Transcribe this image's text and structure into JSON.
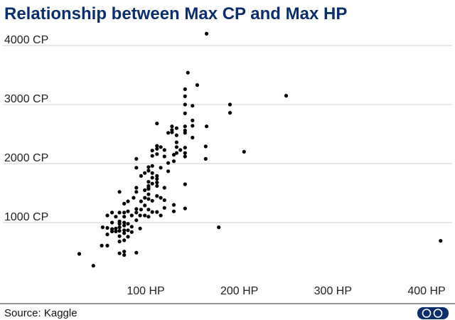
{
  "chart_data": {
    "type": "scatter",
    "title": "Relationship between Max CP and Max HP",
    "xlabel": "",
    "ylabel": "",
    "xlim": [
      20,
      420
    ],
    "ylim": [
      0,
      4400
    ],
    "x_ticks": [
      100,
      200,
      300,
      400
    ],
    "x_tick_labels": [
      "100 HP",
      "200 HP",
      "300 HP",
      "400 HP"
    ],
    "y_ticks": [
      1000,
      2000,
      3000,
      4000
    ],
    "y_tick_labels": [
      "1000 CP",
      "2000 CP",
      "3000 CP",
      "4000 CP"
    ],
    "grid": "horizontal",
    "legend": "none",
    "marker_color": "#000000",
    "points": [
      [
        29,
        470
      ],
      [
        44,
        270
      ],
      [
        53,
        610
      ],
      [
        54,
        920
      ],
      [
        59,
        1120
      ],
      [
        59,
        910
      ],
      [
        59,
        800
      ],
      [
        59,
        610
      ],
      [
        64,
        1170
      ],
      [
        64,
        1000
      ],
      [
        64,
        890
      ],
      [
        64,
        850
      ],
      [
        68,
        1100
      ],
      [
        68,
        900
      ],
      [
        68,
        850
      ],
      [
        72,
        1520
      ],
      [
        72,
        1170
      ],
      [
        72,
        1020
      ],
      [
        72,
        980
      ],
      [
        72,
        920
      ],
      [
        72,
        860
      ],
      [
        72,
        770
      ],
      [
        72,
        680
      ],
      [
        72,
        480
      ],
      [
        77,
        1320
      ],
      [
        77,
        1170
      ],
      [
        77,
        1100
      ],
      [
        77,
        1000
      ],
      [
        77,
        950
      ],
      [
        77,
        870
      ],
      [
        77,
        820
      ],
      [
        77,
        700
      ],
      [
        77,
        510
      ],
      [
        77,
        450
      ],
      [
        81,
        1360
      ],
      [
        81,
        1190
      ],
      [
        81,
        980
      ],
      [
        81,
        870
      ],
      [
        81,
        760
      ],
      [
        85,
        1120
      ],
      [
        85,
        930
      ],
      [
        85,
        840
      ],
      [
        87,
        1420
      ],
      [
        90,
        1590
      ],
      [
        90,
        1520
      ],
      [
        90,
        1230
      ],
      [
        90,
        1170
      ],
      [
        90,
        1040
      ],
      [
        90,
        2080
      ],
      [
        90,
        1930
      ],
      [
        90,
        490
      ],
      [
        94,
        1120
      ],
      [
        94,
        900
      ],
      [
        95,
        1790
      ],
      [
        95,
        1360
      ],
      [
        95,
        1220
      ],
      [
        99,
        1550
      ],
      [
        99,
        1420
      ],
      [
        99,
        1290
      ],
      [
        99,
        1120
      ],
      [
        99,
        1840
      ],
      [
        103,
        1620
      ],
      [
        103,
        1480
      ],
      [
        103,
        1400
      ],
      [
        103,
        1220
      ],
      [
        103,
        1100
      ],
      [
        103,
        1940
      ],
      [
        103,
        1880
      ],
      [
        103,
        1690
      ],
      [
        103,
        1590
      ],
      [
        103,
        1570
      ],
      [
        107,
        2220
      ],
      [
        107,
        2130
      ],
      [
        107,
        1960
      ],
      [
        107,
        1840
      ],
      [
        107,
        1760
      ],
      [
        107,
        1660
      ],
      [
        107,
        1370
      ],
      [
        107,
        1180
      ],
      [
        112,
        2300
      ],
      [
        112,
        2250
      ],
      [
        112,
        2160
      ],
      [
        112,
        1790
      ],
      [
        112,
        1740
      ],
      [
        112,
        1680
      ],
      [
        112,
        1620
      ],
      [
        112,
        1450
      ],
      [
        112,
        1180
      ],
      [
        112,
        2680
      ],
      [
        116,
        2280
      ],
      [
        116,
        1930
      ],
      [
        116,
        1420
      ],
      [
        116,
        1120
      ],
      [
        120,
        2230
      ],
      [
        120,
        2120
      ],
      [
        120,
        1590
      ],
      [
        120,
        1380
      ],
      [
        120,
        1250
      ],
      [
        124,
        2520
      ],
      [
        124,
        2010
      ],
      [
        124,
        1870
      ],
      [
        128,
        2630
      ],
      [
        128,
        2570
      ],
      [
        128,
        2530
      ],
      [
        130,
        2150
      ],
      [
        130,
        2040
      ],
      [
        130,
        1300
      ],
      [
        130,
        1190
      ],
      [
        133,
        2600
      ],
      [
        133,
        2480
      ],
      [
        133,
        2360
      ],
      [
        133,
        2280
      ],
      [
        133,
        2180
      ],
      [
        137,
        2230
      ],
      [
        142,
        3260
      ],
      [
        142,
        3140
      ],
      [
        142,
        3000
      ],
      [
        142,
        2850
      ],
      [
        142,
        2630
      ],
      [
        142,
        2560
      ],
      [
        142,
        2520
      ],
      [
        142,
        2270
      ],
      [
        142,
        2180
      ],
      [
        142,
        2120
      ],
      [
        142,
        1650
      ],
      [
        142,
        1240
      ],
      [
        145,
        3540
      ],
      [
        150,
        2980
      ],
      [
        150,
        2730
      ],
      [
        150,
        2640
      ],
      [
        150,
        2440
      ],
      [
        155,
        3330
      ],
      [
        164,
        2290
      ],
      [
        164,
        2080
      ],
      [
        165,
        2630
      ],
      [
        165,
        4200
      ],
      [
        178,
        920
      ],
      [
        190,
        3000
      ],
      [
        190,
        2860
      ],
      [
        205,
        2200
      ],
      [
        250,
        3150
      ],
      [
        415,
        690
      ]
    ]
  },
  "source": "Source: Kaggle",
  "logo": {
    "text": "GO",
    "color": "#0c2f6b"
  }
}
